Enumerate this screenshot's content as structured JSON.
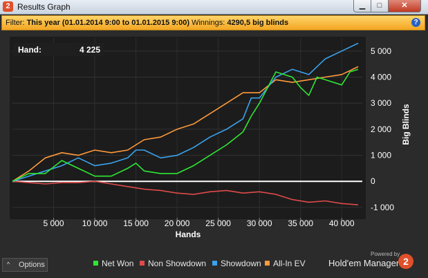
{
  "window": {
    "title": "Results Graph",
    "app_icon": "2",
    "min": "▁",
    "max": "□",
    "close": "✕"
  },
  "filter": {
    "label": "Filter:",
    "value": "This year (01.01.2014 9:00 to 01.01.2015 9:00)",
    "winnings_label": "Winnings:",
    "winnings_value": "4290,5 big blinds",
    "help": "?"
  },
  "readout": {
    "label": "Hand:",
    "value": "4 225"
  },
  "options": {
    "label": "Options",
    "chevron": "^"
  },
  "branding": {
    "powered": "Powered by",
    "name": "Hold'em Manager",
    "logo": "2"
  },
  "colors": {
    "net_won": "#2ee834",
    "non_showdown": "#e04a4a",
    "showdown": "#3aa3ee",
    "allin_ev": "#ff9a3c",
    "zero_line": "#ffffff"
  },
  "chart_data": {
    "type": "line",
    "xlabel": "Hands",
    "ylabel": "Big Blinds",
    "xlim": [
      0,
      42500
    ],
    "ylim": [
      -1400,
      5500
    ],
    "x_ticks": [
      5000,
      10000,
      15000,
      20000,
      25000,
      30000,
      35000,
      40000
    ],
    "x_tick_labels": [
      "5 000",
      "10 000",
      "15 000",
      "20 000",
      "25 000",
      "30 000",
      "35 000",
      "40 000"
    ],
    "y_ticks": [
      -1000,
      0,
      1000,
      2000,
      3000,
      4000,
      5000
    ],
    "y_tick_labels": [
      "-1 000",
      "0",
      "1 000",
      "2 000",
      "3 000",
      "4 000",
      "5 000"
    ],
    "legend_position": "bottom",
    "series": [
      {
        "name": "Net Won",
        "x": [
          0,
          2000,
          4000,
          6000,
          8000,
          10000,
          12000,
          14000,
          15000,
          16000,
          18000,
          20000,
          22000,
          24000,
          26000,
          28000,
          29000,
          30000,
          32000,
          34000,
          35000,
          36000,
          37000,
          38000,
          40000,
          41000,
          42000
        ],
        "y": [
          0,
          300,
          300,
          800,
          500,
          200,
          200,
          500,
          700,
          400,
          300,
          300,
          600,
          1000,
          1400,
          1900,
          2500,
          3000,
          4200,
          4000,
          3600,
          3300,
          4000,
          3900,
          3700,
          4200,
          4300
        ]
      },
      {
        "name": "Non Showdown",
        "x": [
          0,
          4000,
          6000,
          8000,
          10000,
          12000,
          14000,
          16000,
          18000,
          20000,
          22000,
          24000,
          26000,
          28000,
          30000,
          32000,
          34000,
          36000,
          38000,
          40000,
          42000
        ],
        "y": [
          0,
          -100,
          -50,
          -50,
          0,
          -100,
          -200,
          -300,
          -350,
          -450,
          -500,
          -400,
          -350,
          -450,
          -400,
          -500,
          -700,
          -800,
          -750,
          -850,
          -900
        ]
      },
      {
        "name": "Showdown",
        "x": [
          0,
          2000,
          4000,
          6000,
          8000,
          10000,
          12000,
          14000,
          15000,
          16000,
          18000,
          20000,
          22000,
          24000,
          26000,
          28000,
          29000,
          30000,
          32000,
          34000,
          36000,
          38000,
          40000,
          42000
        ],
        "y": [
          0,
          200,
          400,
          600,
          900,
          600,
          700,
          900,
          1200,
          1200,
          900,
          1000,
          1300,
          1700,
          2000,
          2400,
          3200,
          3200,
          4000,
          4300,
          4100,
          4700,
          5000,
          5300
        ]
      },
      {
        "name": "All-In EV",
        "x": [
          0,
          2000,
          4000,
          6000,
          8000,
          10000,
          12000,
          14000,
          16000,
          18000,
          20000,
          22000,
          24000,
          26000,
          28000,
          30000,
          32000,
          34000,
          36000,
          38000,
          40000,
          42000
        ],
        "y": [
          0,
          400,
          900,
          1100,
          1000,
          1200,
          1100,
          1200,
          1600,
          1700,
          2000,
          2200,
          2600,
          3000,
          3400,
          3400,
          3900,
          3800,
          3900,
          4000,
          4100,
          4400
        ]
      }
    ]
  }
}
